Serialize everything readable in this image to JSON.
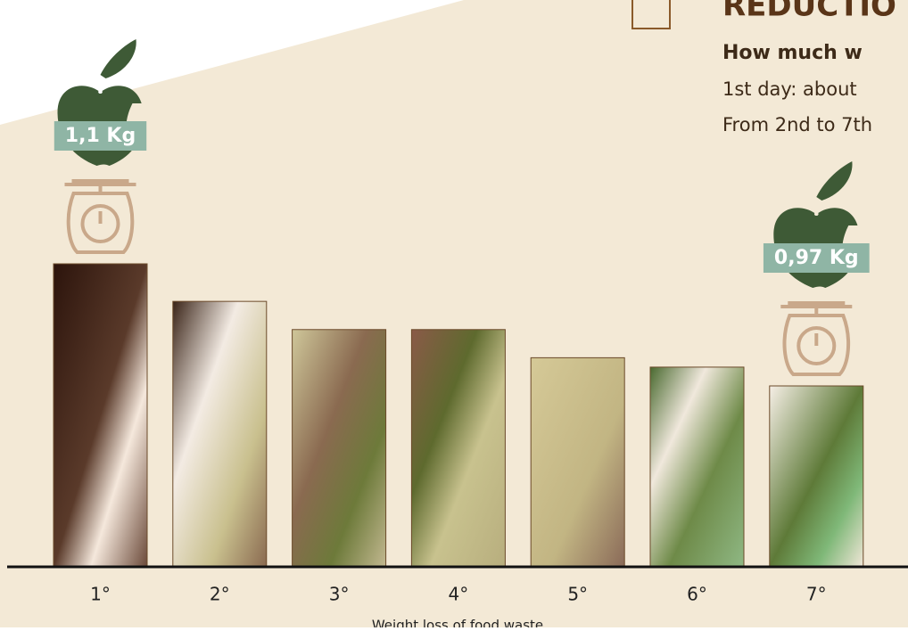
{
  "header": {
    "title": "REDUCTIO",
    "subtitle": "How much w",
    "lines": [
      "1st day: about",
      "From 2nd to 7th"
    ]
  },
  "chart_data": {
    "type": "bar",
    "x_label": "Weight loss of food waste",
    "categories": [
      "1°",
      "2°",
      "3°",
      "4°",
      "5°",
      "6°",
      "7°"
    ],
    "values": [
      1.1,
      1.06,
      1.03,
      1.03,
      1.0,
      0.99,
      0.97
    ],
    "value_labels": [
      "1,1 Kg",
      null,
      null,
      null,
      null,
      null,
      "0,97 Kg"
    ]
  }
}
